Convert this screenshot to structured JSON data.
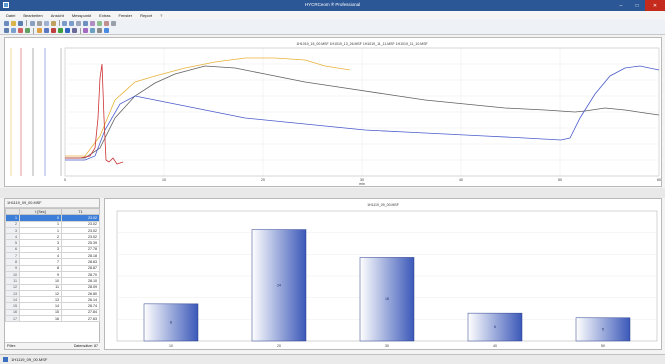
{
  "window": {
    "title": "HYCRCeom ® Professional",
    "min": "–",
    "max": "□",
    "close": "✕"
  },
  "menu": [
    "Datei",
    "Bearbeiten",
    "Ansicht",
    "Messpunkt",
    "Extras",
    "Fenster",
    "Report",
    "?"
  ],
  "top_chart": {
    "title": "1H1019_15_00.MSF 1H1019_13_26.MSF 1H1019_11_11.MSF 1H1019_11_10.MSF",
    "xlabel": "min",
    "x_ticks": [
      "0",
      "10",
      "20",
      "30",
      "40",
      "50",
      "60"
    ]
  },
  "left_pane": {
    "header": "1H1119_09_00.MSF",
    "col_headers": [
      "",
      "t [Sec]",
      "T1"
    ],
    "rows": [
      [
        "1",
        "0",
        "23.02"
      ],
      [
        "2",
        "1",
        "23.02"
      ],
      [
        "3",
        "1",
        "23.02"
      ],
      [
        "4",
        "2",
        "23.02"
      ],
      [
        "5",
        "3",
        "25.39"
      ],
      [
        "6",
        "3",
        "27.78"
      ],
      [
        "7",
        "4",
        "28.18"
      ],
      [
        "8",
        "7",
        "28.63"
      ],
      [
        "9",
        "8",
        "28.87"
      ],
      [
        "10",
        "9",
        "28.70"
      ],
      [
        "11",
        "10",
        "28.10"
      ],
      [
        "12",
        "11",
        "28.09"
      ],
      [
        "13",
        "12",
        "26.80"
      ],
      [
        "14",
        "13",
        "26.14"
      ],
      [
        "15",
        "14",
        "26.74"
      ],
      [
        "16",
        "15",
        "27.84"
      ],
      [
        "17",
        "16",
        "27.63"
      ]
    ],
    "filter_label": "Filter:",
    "count_label": "Datensätze: 87"
  },
  "bottom_chart": {
    "title": "1H1119_09_00.MSF"
  },
  "chart_data": {
    "type": "bar",
    "title": "1H1119_09_00.MSF",
    "categories": [
      "10",
      "20",
      "30",
      "40",
      "50"
    ],
    "values": [
      8,
      24,
      18,
      6,
      5
    ],
    "ylim": [
      0,
      28
    ],
    "grid": true,
    "bar_color": "#3b58b8"
  },
  "status": {
    "text": "1H1119_09_00.MSF"
  },
  "colors": {
    "yellow_series": "#e8b23c",
    "gray_series": "#606060",
    "blue_series": "#4a5ccc",
    "red_series": "#cc3333",
    "accent": "#2b5797"
  }
}
